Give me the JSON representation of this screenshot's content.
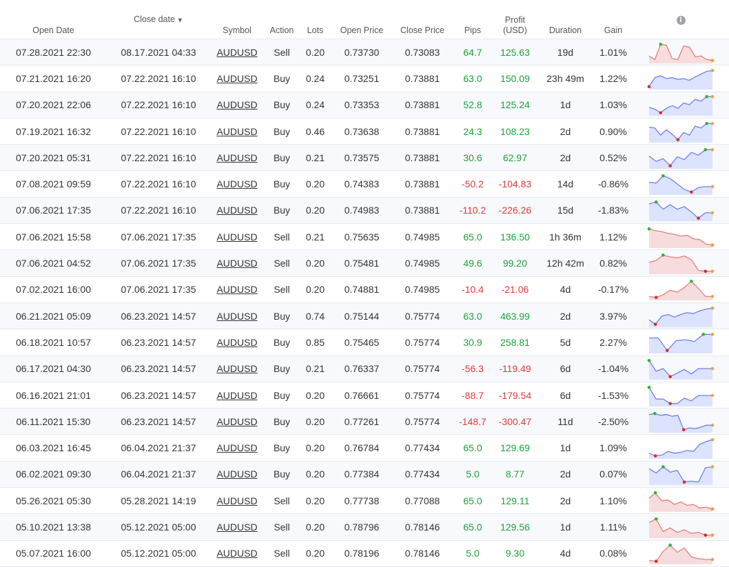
{
  "headers": {
    "open_date": "Open Date",
    "close_date": "Close date",
    "close_sort_indicator": "▼",
    "symbol": "Symbol",
    "action": "Action",
    "lots": "Lots",
    "open_price": "Open Price",
    "close_price": "Close Price",
    "pips": "Pips",
    "profit_line1": "Profit",
    "profit_line2": "(USD)",
    "duration": "Duration",
    "gain": "Gain",
    "info_icon": "info-icon"
  },
  "colors": {
    "positive": "#1aa33a",
    "negative": "#e03a3a",
    "buy_line": "#6f7ff0",
    "buy_fill": "#dbe3ff",
    "sell_line": "#e0807e",
    "sell_fill": "#f6dcdc",
    "marker_max": "#2cb52c",
    "marker_min": "#e02828",
    "marker_end": "#f2a23a"
  },
  "trades": [
    {
      "open": "07.28.2021 22:30",
      "close": "08.17.2021 04:33",
      "symbol": "AUDUSD",
      "action": "Sell",
      "lots": "0.20",
      "open_price": "0.73730",
      "close_price": "0.73083",
      "pips": "64.7",
      "profit": "125.63",
      "duration": "19d",
      "gain": "1.01%",
      "spark": [
        0.3,
        0.1,
        0.95,
        0.9,
        0.15,
        0.1,
        0.85,
        0.8,
        0.25,
        0.3,
        0.1,
        0.05
      ]
    },
    {
      "open": "07.21.2021 16:20",
      "close": "07.22.2021 16:10",
      "symbol": "AUDUSD",
      "action": "Buy",
      "lots": "0.24",
      "open_price": "0.73251",
      "close_price": "0.73881",
      "pips": "63.0",
      "profit": "150.09",
      "duration": "23h 49m",
      "gain": "1.22%",
      "spark": [
        0.05,
        0.55,
        0.65,
        0.5,
        0.55,
        0.45,
        0.5,
        0.4,
        0.6,
        0.75,
        0.9,
        0.95
      ]
    },
    {
      "open": "07.20.2021 22:06",
      "close": "07.22.2021 16:10",
      "symbol": "AUDUSD",
      "action": "Buy",
      "lots": "0.24",
      "open_price": "0.73353",
      "close_price": "0.73881",
      "pips": "52.8",
      "profit": "125.24",
      "duration": "1d",
      "gain": "1.03%",
      "spark": [
        0.35,
        0.25,
        0.05,
        0.3,
        0.45,
        0.3,
        0.6,
        0.5,
        0.8,
        0.7,
        0.95,
        0.95
      ]
    },
    {
      "open": "07.19.2021 16:32",
      "close": "07.22.2021 16:10",
      "symbol": "AUDUSD",
      "action": "Buy",
      "lots": "0.46",
      "open_price": "0.73638",
      "close_price": "0.73881",
      "pips": "24.3",
      "profit": "108.23",
      "duration": "2d",
      "gain": "0.90%",
      "spark": [
        0.75,
        0.7,
        0.3,
        0.6,
        0.35,
        0.05,
        0.45,
        0.3,
        0.8,
        0.7,
        0.95,
        0.95
      ]
    },
    {
      "open": "07.20.2021 05:31",
      "close": "07.22.2021 16:10",
      "symbol": "AUDUSD",
      "action": "Buy",
      "lots": "0.21",
      "open_price": "0.73575",
      "close_price": "0.73881",
      "pips": "30.6",
      "profit": "62.97",
      "duration": "2d",
      "gain": "0.52%",
      "spark": [
        0.6,
        0.3,
        0.45,
        0.05,
        0.55,
        0.4,
        0.8,
        0.65,
        0.95,
        0.95
      ]
    },
    {
      "open": "07.08.2021 09:59",
      "close": "07.22.2021 16:10",
      "symbol": "AUDUSD",
      "action": "Buy",
      "lots": "0.20",
      "open_price": "0.74383",
      "close_price": "0.73881",
      "pips": "-50.2",
      "profit": "-104.83",
      "duration": "14d",
      "gain": "-0.86%",
      "spark": [
        0.6,
        0.55,
        0.95,
        0.8,
        0.5,
        0.2,
        0.05,
        0.3,
        0.35,
        0.35
      ]
    },
    {
      "open": "07.06.2021 17:35",
      "close": "07.22.2021 16:10",
      "symbol": "AUDUSD",
      "action": "Buy",
      "lots": "0.20",
      "open_price": "0.74983",
      "close_price": "0.73881",
      "pips": "-110.2",
      "profit": "-226.26",
      "duration": "15d",
      "gain": "-1.83%",
      "spark": [
        0.85,
        0.95,
        0.55,
        0.8,
        0.55,
        0.7,
        0.4,
        0.05,
        0.35,
        0.35
      ]
    },
    {
      "open": "07.06.2021 15:58",
      "close": "07.06.2021 17:35",
      "symbol": "AUDUSD",
      "action": "Sell",
      "lots": "0.21",
      "open_price": "0.75635",
      "close_price": "0.74985",
      "pips": "65.0",
      "profit": "136.50",
      "duration": "1h 36m",
      "gain": "1.12%",
      "spark": [
        0.95,
        0.85,
        0.8,
        0.7,
        0.65,
        0.55,
        0.6,
        0.4,
        0.35,
        0.1,
        0.05
      ]
    },
    {
      "open": "07.06.2021 04:52",
      "close": "07.06.2021 17:35",
      "symbol": "AUDUSD",
      "action": "Sell",
      "lots": "0.20",
      "open_price": "0.75481",
      "close_price": "0.74985",
      "pips": "49.6",
      "profit": "99.20",
      "duration": "12h 42m",
      "gain": "0.82%",
      "spark": [
        0.55,
        0.65,
        0.95,
        0.85,
        0.8,
        0.9,
        0.7,
        0.1,
        0.05,
        0.05
      ]
    },
    {
      "open": "07.02.2021 16:00",
      "close": "07.06.2021 17:35",
      "symbol": "AUDUSD",
      "action": "Sell",
      "lots": "0.20",
      "open_price": "0.74881",
      "close_price": "0.74985",
      "pips": "-10.4",
      "profit": "-21.06",
      "duration": "4d",
      "gain": "-0.17%",
      "spark": [
        0.1,
        0.05,
        0.2,
        0.45,
        0.35,
        0.6,
        0.95,
        0.55,
        0.1,
        0.1
      ]
    },
    {
      "open": "06.21.2021 05:09",
      "close": "06.23.2021 14:57",
      "symbol": "AUDUSD",
      "action": "Buy",
      "lots": "0.74",
      "open_price": "0.75144",
      "close_price": "0.75774",
      "pips": "63.0",
      "profit": "463.99",
      "duration": "2d",
      "gain": "3.97%",
      "spark": [
        0.3,
        0.05,
        0.5,
        0.6,
        0.45,
        0.6,
        0.7,
        0.65,
        0.8,
        0.9,
        0.95
      ]
    },
    {
      "open": "06.18.2021 10:57",
      "close": "06.23.2021 14:57",
      "symbol": "AUDUSD",
      "action": "Buy",
      "lots": "0.85",
      "open_price": "0.75465",
      "close_price": "0.75774",
      "pips": "30.9",
      "profit": "258.81",
      "duration": "5d",
      "gain": "2.27%",
      "spark": [
        0.75,
        0.75,
        0.05,
        0.6,
        0.65,
        0.55,
        0.95,
        0.95
      ]
    },
    {
      "open": "06.17.2021 04:30",
      "close": "06.23.2021 14:57",
      "symbol": "AUDUSD",
      "action": "Buy",
      "lots": "0.21",
      "open_price": "0.76337",
      "close_price": "0.75774",
      "pips": "-56.3",
      "profit": "-119.49",
      "duration": "6d",
      "gain": "-1.04%",
      "spark": [
        0.95,
        0.35,
        0.5,
        0.05,
        0.25,
        0.45,
        0.2,
        0.5,
        0.5,
        0.5
      ]
    },
    {
      "open": "06.16.2021 21:01",
      "close": "06.23.2021 14:57",
      "symbol": "AUDUSD",
      "action": "Buy",
      "lots": "0.20",
      "open_price": "0.76661",
      "close_price": "0.75774",
      "pips": "-88.7",
      "profit": "-179.54",
      "duration": "6d",
      "gain": "-1.53%",
      "spark": [
        0.95,
        0.3,
        0.3,
        0.05,
        0.05,
        0.35,
        0.2,
        0.5,
        0.5,
        0.5
      ]
    },
    {
      "open": "06.11.2021 15:30",
      "close": "06.23.2021 14:57",
      "symbol": "AUDUSD",
      "action": "Buy",
      "lots": "0.20",
      "open_price": "0.77261",
      "close_price": "0.75774",
      "pips": "-148.7",
      "profit": "-300.47",
      "duration": "11d",
      "gain": "-2.50%",
      "spark": [
        0.9,
        0.95,
        0.85,
        0.9,
        0.8,
        0.85,
        0.05,
        0.15,
        0.1,
        0.2,
        0.3,
        0.3
      ]
    },
    {
      "open": "06.03.2021 16:45",
      "close": "06.04.2021 21:37",
      "symbol": "AUDUSD",
      "action": "Buy",
      "lots": "0.20",
      "open_price": "0.76784",
      "close_price": "0.77434",
      "pips": "65.0",
      "profit": "129.69",
      "duration": "1d",
      "gain": "1.09%",
      "spark": [
        0.2,
        0.05,
        0.1,
        0.3,
        0.2,
        0.25,
        0.35,
        0.3,
        0.7,
        0.85,
        0.95
      ]
    },
    {
      "open": "06.02.2021 09:30",
      "close": "06.04.2021 21:37",
      "symbol": "AUDUSD",
      "action": "Buy",
      "lots": "0.20",
      "open_price": "0.77384",
      "close_price": "0.77434",
      "pips": "5.0",
      "profit": "8.77",
      "duration": "2d",
      "gain": "0.07%",
      "spark": [
        0.8,
        0.55,
        0.9,
        0.6,
        0.7,
        0.05,
        0.1,
        0.05,
        0.85,
        0.9
      ]
    },
    {
      "open": "05.26.2021 05:30",
      "close": "05.28.2021 14:19",
      "symbol": "AUDUSD",
      "action": "Sell",
      "lots": "0.20",
      "open_price": "0.77738",
      "close_price": "0.77088",
      "pips": "65.0",
      "profit": "129.11",
      "duration": "2d",
      "gain": "1.10%",
      "spark": [
        0.65,
        0.95,
        0.5,
        0.55,
        0.3,
        0.45,
        0.25,
        0.3,
        0.1,
        0.15,
        0.05
      ]
    },
    {
      "open": "05.10.2021 13:38",
      "close": "05.12.2021 05:00",
      "symbol": "AUDUSD",
      "action": "Sell",
      "lots": "0.20",
      "open_price": "0.78796",
      "close_price": "0.78146",
      "pips": "65.0",
      "profit": "129.56",
      "duration": "1d",
      "gain": "1.11%",
      "spark": [
        0.75,
        0.95,
        0.25,
        0.45,
        0.2,
        0.35,
        0.15,
        0.2,
        0.05,
        0.05
      ]
    },
    {
      "open": "05.07.2021 16:00",
      "close": "05.12.2021 05:00",
      "symbol": "AUDUSD",
      "action": "Sell",
      "lots": "0.20",
      "open_price": "0.78196",
      "close_price": "0.78146",
      "pips": "5.0",
      "profit": "9.30",
      "duration": "4d",
      "gain": "0.08%",
      "spark": [
        0.1,
        0.05,
        0.6,
        0.95,
        0.55,
        0.8,
        0.3,
        0.2,
        0.15,
        0.15
      ]
    }
  ]
}
